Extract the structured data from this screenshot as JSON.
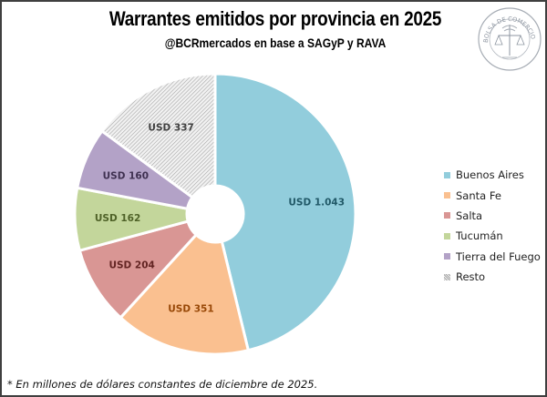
{
  "header": {
    "title": "Warrantes emitidos por provincia en 2025",
    "subtitle": "@BCRmercados en base a SAGyP y RAVA",
    "seal_text": "BOLSA DE COMERCIO DE ROSARIO"
  },
  "footnote": "* En millones de dólares constantes de diciembre de 2025.",
  "chart_data": {
    "type": "pie",
    "variant": "doughnut",
    "title": "Warrantes emitidos por provincia en 2025",
    "subtitle": "@BCRmercados en base a SAGyP y RAVA",
    "unit": "millones de USD constantes de diciembre de 2025",
    "legend_position": "right",
    "start": "top",
    "direction": "clockwise",
    "categories": [
      "Buenos Aires",
      "Santa Fe",
      "Salta",
      "Tucumán",
      "Tierra del Fuego",
      "Resto"
    ],
    "values": [
      1043,
      351,
      204,
      162,
      160,
      337
    ],
    "data_labels": [
      "USD 1.043",
      "USD 351",
      "USD 204",
      "USD 162",
      "USD 160",
      "USD 337"
    ],
    "colors": [
      "#92cddc",
      "#fac090",
      "#d99694",
      "#c3d69b",
      "#b3a2c7",
      "#d9d9d9"
    ],
    "label_colors": [
      "#215968",
      "#984807",
      "#632523",
      "#4f6228",
      "#3f3151",
      "#404040"
    ],
    "patterned": [
      false,
      false,
      false,
      false,
      false,
      true
    ]
  }
}
